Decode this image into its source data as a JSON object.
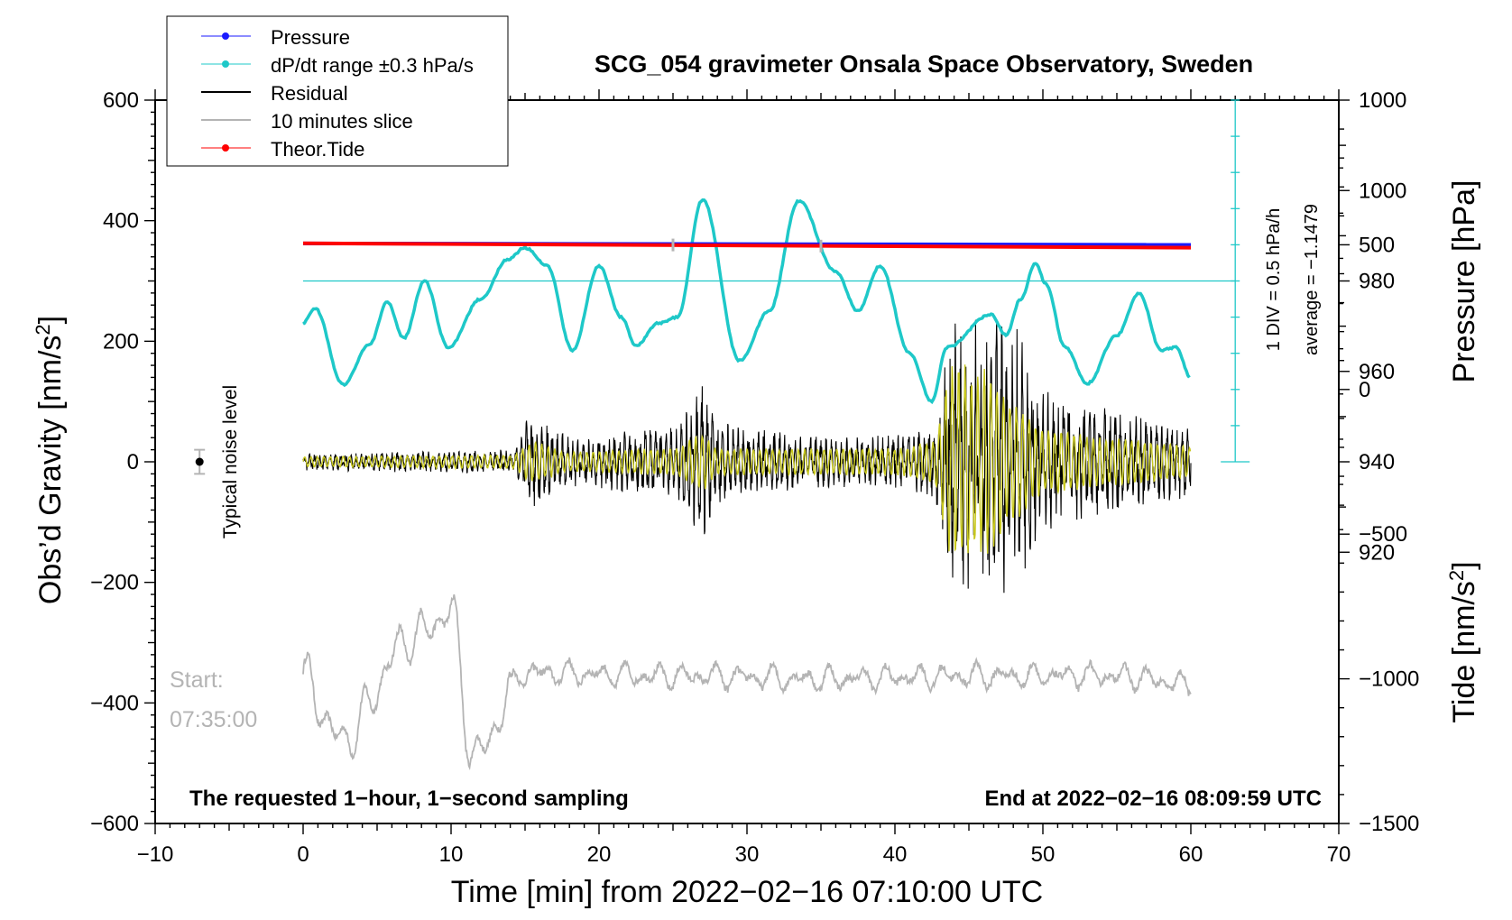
{
  "chart_data": {
    "type": "line",
    "title": "SCG_054 gravimeter Onsala Space Observatory, Sweden",
    "xlabel": "Time [min] from 2022−02−16 07:10:00 UTC",
    "ylabel_left": "Obs’d Gravity [nm/s",
    "ylabel_left_sup": "2",
    "ylabel_left_close": "]",
    "ylabel_pressure": "Pressure [hPa]",
    "ylabel_tide": "Tide [nm/s",
    "ylabel_tide_sup": "2",
    "ylabel_tide_close": "]",
    "xlim": [
      -10,
      70
    ],
    "ylim": [
      -600,
      600
    ],
    "x_ticks": [
      -10,
      0,
      10,
      20,
      30,
      40,
      50,
      60,
      70
    ],
    "x_tick_labels": [
      "−10",
      "0",
      "10",
      "20",
      "30",
      "40",
      "50",
      "60",
      "70"
    ],
    "y_ticks": [
      -600,
      -400,
      -200,
      0,
      200,
      400,
      600
    ],
    "y_tick_labels": [
      "−600",
      "−400",
      "−200",
      "0",
      "200",
      "400",
      "600"
    ],
    "pressure_ticks": [
      920,
      940,
      960,
      980,
      1000
    ],
    "pressure_tick_labels": [
      "920",
      "940",
      "960",
      "980",
      "1000"
    ],
    "pressure_axis_range": [
      860,
      1020
    ],
    "tide_ticks": [
      -1500,
      -1000,
      -500,
      0,
      500,
      1000
    ],
    "tide_tick_labels": [
      "−1500",
      "−1000",
      "−500",
      "0",
      "500",
      "1000"
    ],
    "tide_axis_range": [
      -1500,
      1000
    ],
    "legend": {
      "position": "top-left",
      "entries": [
        {
          "label": "Pressure",
          "color": "#1a1aff",
          "marker": "dot"
        },
        {
          "label": "dP/dt range ±0.3 hPa/s",
          "color": "#1ec8c8",
          "marker": "dot"
        },
        {
          "label": "Residual",
          "color": "#000000",
          "marker": "none"
        },
        {
          "label": "10 minutes slice",
          "color": "#b4b4b4",
          "marker": "none"
        },
        {
          "label": "Theor.Tide",
          "color": "#ff0000",
          "marker": "dot"
        }
      ]
    },
    "series": [
      {
        "name": "Pressure",
        "axis": "pressure",
        "color": "#1a1aff",
        "x": [
          0,
          60
        ],
        "values": [
          988.3,
          988.0
        ]
      },
      {
        "name": "dP/dt (derivative, plotted in gravity units)",
        "axis": "gravity",
        "color": "#1ec8c8",
        "x": [
          0,
          0.8,
          2.7,
          4.5,
          5.7,
          6.8,
          8.2,
          9.8,
          12.0,
          13.8,
          15.0,
          16.5,
          18.2,
          20.0,
          21.5,
          22.5,
          24.0,
          25.3,
          27.0,
          29.5,
          31.5,
          33.5,
          36.0,
          37.5,
          39.0,
          41.0,
          42.5,
          43.5,
          46.5,
          47.5,
          48.5,
          49.5,
          50.2,
          51.5,
          53.0,
          55.0,
          56.5,
          58.0,
          59.0,
          60.0
        ],
        "values": [
          230,
          255,
          128,
          195,
          265,
          205,
          300,
          190,
          270,
          335,
          355,
          325,
          185,
          325,
          240,
          192,
          230,
          240,
          435,
          168,
          250,
          433,
          315,
          250,
          325,
          180,
          100,
          190,
          245,
          210,
          270,
          330,
          295,
          190,
          130,
          210,
          280,
          185,
          190,
          140
        ]
      },
      {
        "name": "dP/dt zero reference",
        "axis": "gravity",
        "color": "#1ec8c8",
        "x": [
          0,
          63
        ],
        "values": [
          300,
          300
        ]
      },
      {
        "name": "Residual",
        "axis": "gravity",
        "color": "#000000",
        "note": "1-second residual gravity, amplitude envelope",
        "x": [
          0,
          14,
          15.5,
          18,
          25,
          27,
          28,
          35,
          40,
          42.5,
          44,
          46,
          48,
          50,
          55,
          60
        ],
        "values": [
          15,
          20,
          80,
          45,
          60,
          130,
          70,
          45,
          45,
          60,
          230,
          250,
          230,
          120,
          90,
          60
        ]
      },
      {
        "name": "Filtered residual",
        "axis": "gravity",
        "color": "#c8c81e",
        "note": "smoothed residual envelope",
        "x": [
          0,
          14,
          15.5,
          18,
          25,
          27,
          28,
          35,
          40,
          42.5,
          44,
          46,
          48,
          50,
          55,
          60
        ],
        "values": [
          8,
          10,
          30,
          15,
          20,
          45,
          20,
          20,
          20,
          30,
          150,
          140,
          90,
          50,
          35,
          25
        ]
      },
      {
        "name": "Theor.Tide",
        "axis": "tide",
        "color": "#ff0000",
        "x": [
          0,
          60
        ],
        "values": [
          505,
          490
        ]
      },
      {
        "name": "10 minutes slice",
        "axis": "gravity",
        "color": "#b4b4b4",
        "note": "slice 07:35:00 stretched over plot width, centred near -365",
        "x": [
          0,
          2.5,
          7.5,
          10.0,
          11.5,
          15.0,
          25.0,
          35.0,
          45.0,
          55.0,
          60.0
        ],
        "values": [
          -360,
          -460,
          -290,
          -250,
          -490,
          -350,
          -355,
          -360,
          -355,
          -355,
          -370
        ]
      }
    ],
    "slice_markers_x": [
      25,
      35
    ],
    "noise_level": {
      "x": -7,
      "value": 0,
      "error": 20,
      "label": "Typical noise level"
    },
    "pressure_scale": {
      "div_label": "1 DIV = 0.5 hPa/h",
      "average_label": "average = −1.1479"
    },
    "annotations": {
      "start_label": "Start:",
      "start_time": "07:35:00",
      "bottom_left": "The requested 1−hour, 1−second sampling",
      "bottom_right": "End at 2022−02−16 08:09:59 UTC"
    }
  }
}
